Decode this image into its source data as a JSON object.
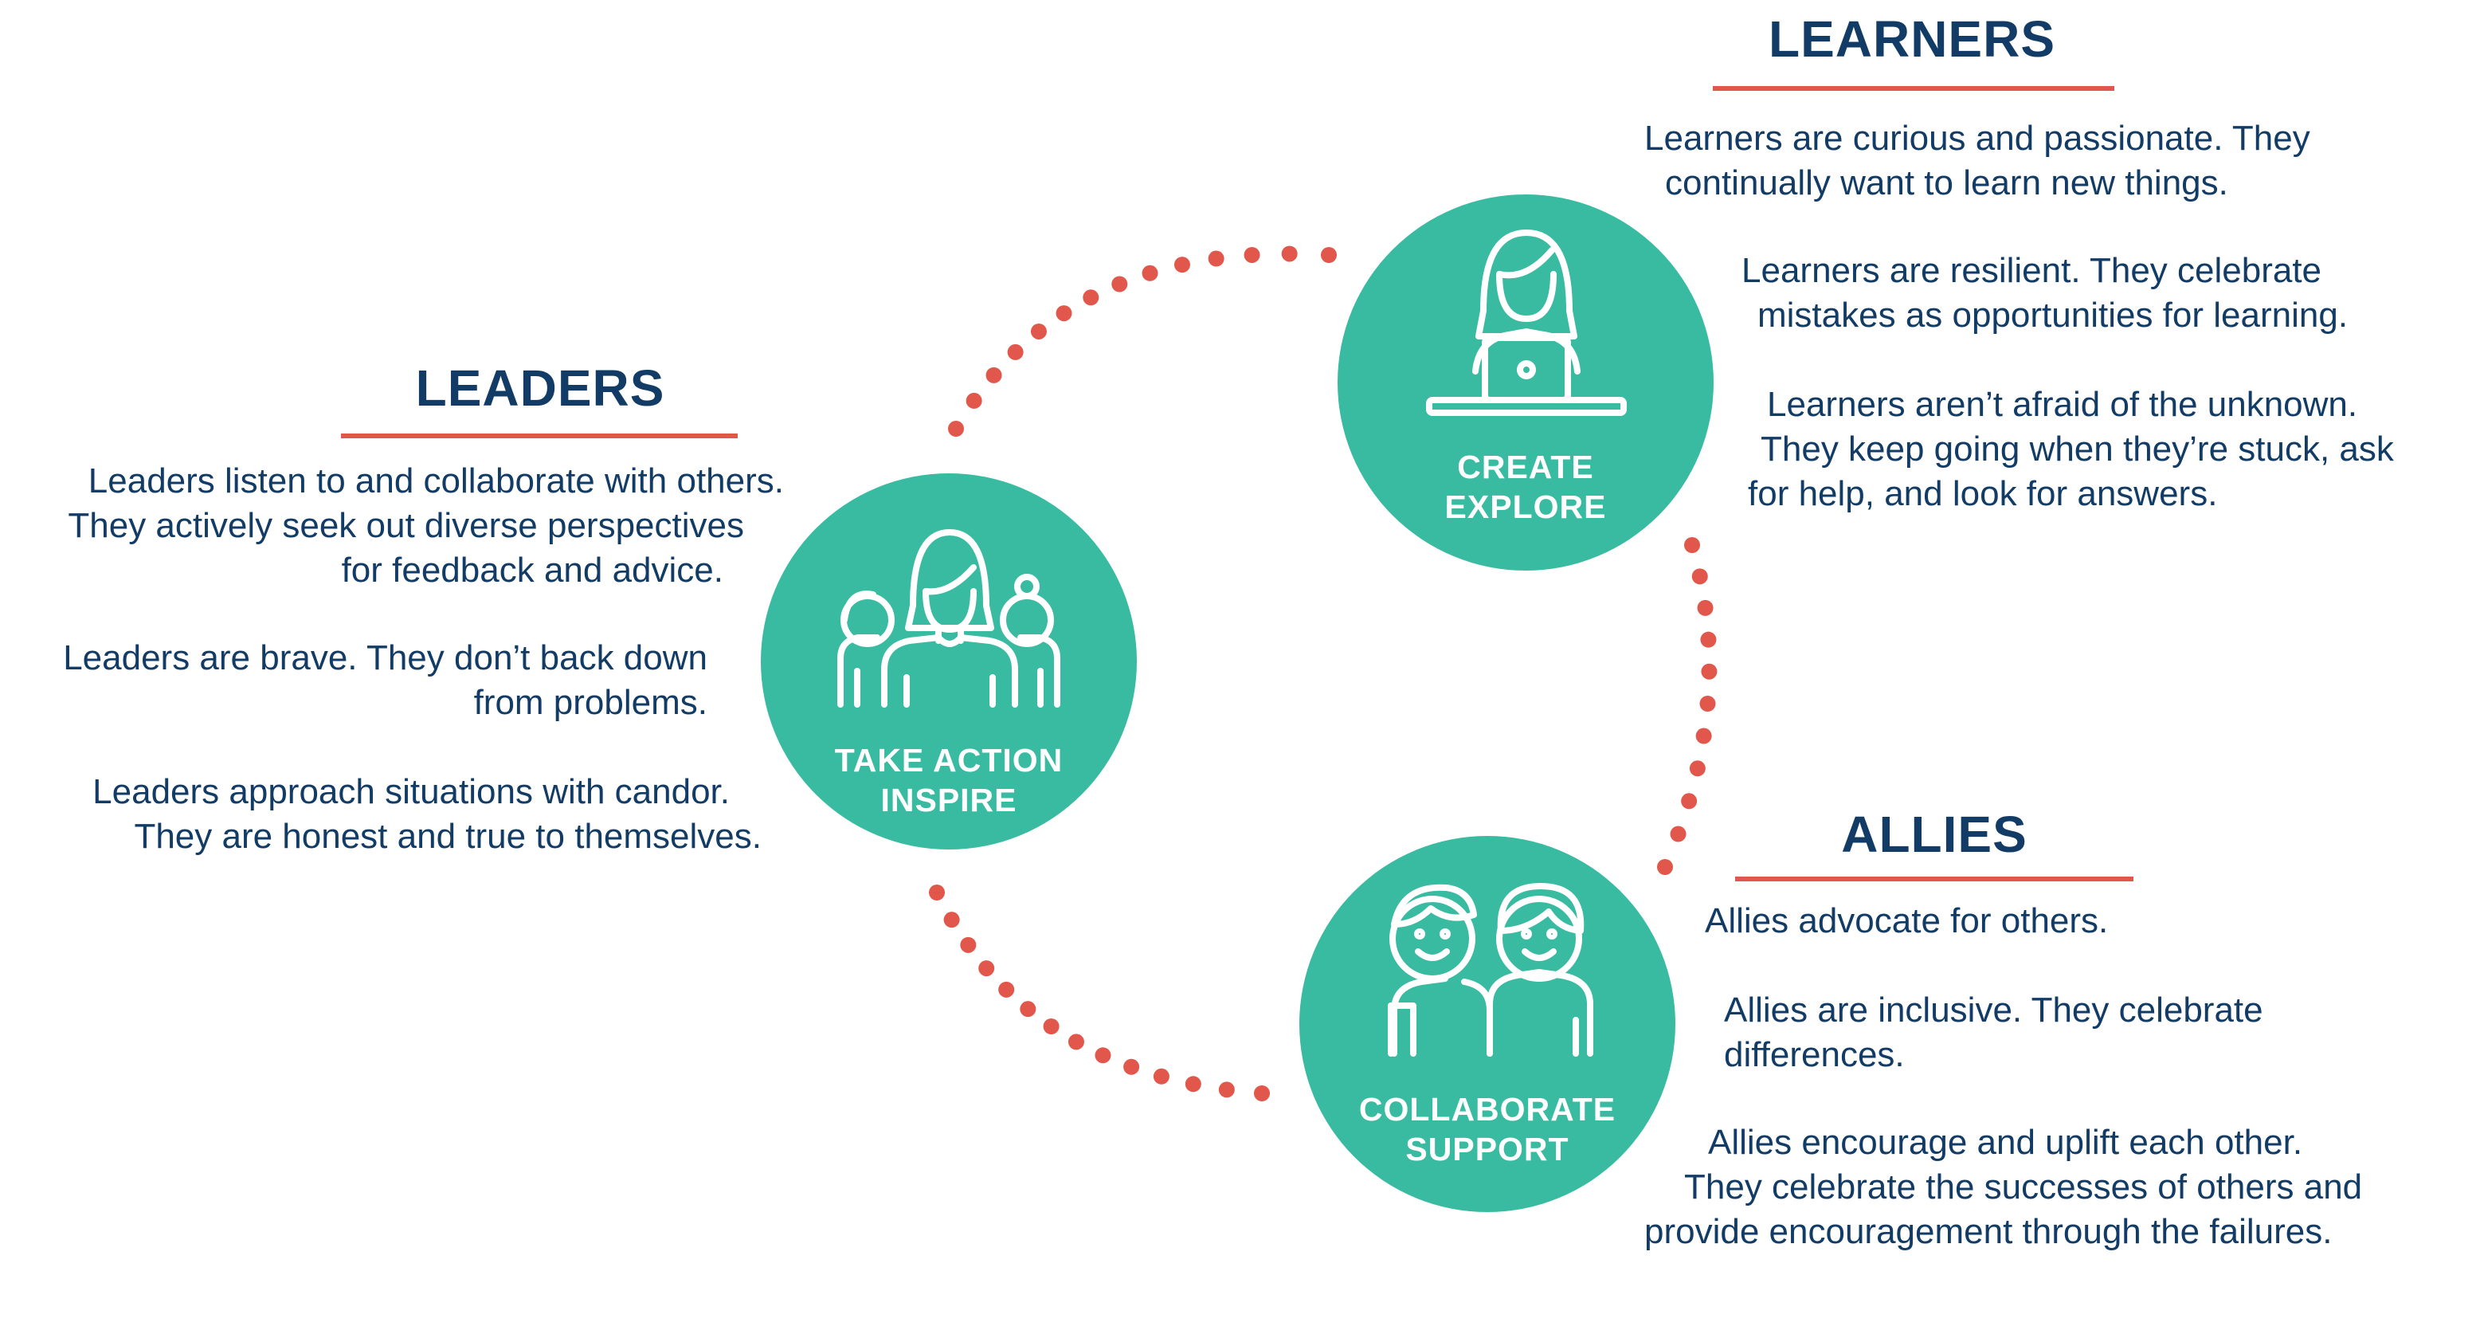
{
  "colors": {
    "teal": "#38bba0",
    "navy": "#123c66",
    "accent_red": "#e2574b",
    "white": "#ffffff"
  },
  "learners": {
    "title": "LEARNERS",
    "icon": "person-at-laptop-icon",
    "circle_line1": "CREATE",
    "circle_line2": "EXPLORE",
    "p1_l1": "Learners are curious and passionate. They",
    "p1_l2": "continually want to learn new things.",
    "p2_l1": "Learners are resilient. They celebrate",
    "p2_l2": "mistakes as opportunities for learning.",
    "p3_l1": "Learners aren’t afraid of the unknown.",
    "p3_l2": "They keep going when they’re stuck, ask",
    "p3_l3": "for help, and look for answers."
  },
  "leaders": {
    "title": "LEADERS",
    "icon": "group-of-people-icon",
    "circle_line1": "TAKE ACTION",
    "circle_line2": "INSPIRE",
    "p1_l1": "Leaders listen to and collaborate with others.",
    "p1_l2": "They actively seek out diverse perspectives",
    "p1_l3": "for feedback and advice.",
    "p2_l1": "Leaders are brave. They don’t back down",
    "p2_l2": "from problems.",
    "p3_l1": "Leaders approach situations with candor.",
    "p3_l2": "They are honest and true to themselves."
  },
  "allies": {
    "title": "ALLIES",
    "icon": "two-people-arm-around-icon",
    "circle_line1": "COLLABORATE",
    "circle_line2": "SUPPORT",
    "p1_l1": "Allies advocate for others.",
    "p2_l1": "Allies are inclusive. They celebrate",
    "p2_l2": "differences.",
    "p3_l1": "Allies encourage and uplift each other.",
    "p3_l2": "They celebrate the successes of others and",
    "p3_l3": "provide encouragement through the failures."
  }
}
